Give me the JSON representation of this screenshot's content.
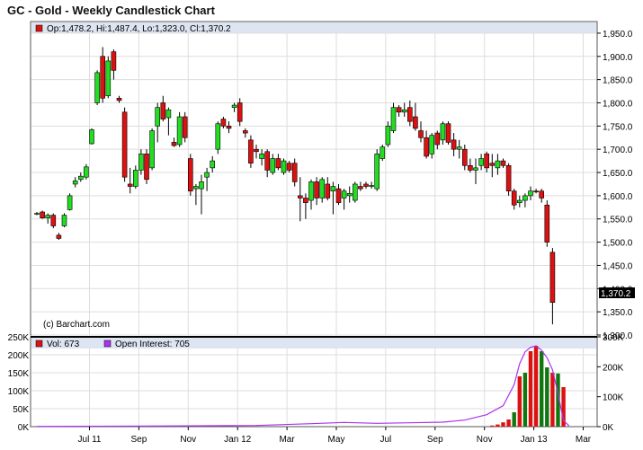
{
  "chart_title": "GC - Gold - Weekly Candlestick Chart",
  "price_panel": {
    "legend_text": "Op:1,478.2, Hi:1,487.4, Lo:1,323.0, Cl:1,370.2",
    "last_price_label": "1,370.2",
    "watermark": "(c) Barchart.com"
  },
  "volume_panel": {
    "legend_volume": "Vol: 673",
    "legend_oi": "Open Interest: 705"
  },
  "colors": {
    "up": "#22dd22",
    "down": "#dd1111",
    "oi_line": "#aa33ee",
    "header_band": "#dde4f2",
    "grid": "#dddddd"
  },
  "chart_data": [
    {
      "type": "candlestick",
      "title": "GC - Gold - Weekly Candlestick Chart",
      "ylim": [
        1300,
        1975
      ],
      "ytick_values": [
        1300,
        1350,
        1400,
        1450,
        1500,
        1550,
        1600,
        1650,
        1700,
        1750,
        1800,
        1850,
        1900,
        1950
      ],
      "ytick_labels": [
        "1,300.0",
        "1,350.0",
        "1,400.0",
        "1,450.0",
        "1,500.0",
        "1,550.0",
        "1,600.0",
        "1,650.0",
        "1,700.0",
        "1,750.0",
        "1,800.0",
        "1,850.0",
        "1,900.0",
        "1,950.0"
      ],
      "x_labels": [
        "Jul 11",
        "Sep",
        "Nov",
        "Jan 12",
        "Mar",
        "May",
        "Jul",
        "Sep",
        "Nov",
        "Jan 13",
        "Mar"
      ],
      "x_label_candle_index": [
        5,
        14,
        23,
        32,
        41,
        50,
        59,
        68,
        77,
        86,
        95
      ],
      "candles": [
        {
          "o": 1560,
          "h": 1565,
          "l": 1558,
          "c": 1562
        },
        {
          "o": 1565,
          "h": 1568,
          "l": 1550,
          "c": 1552
        },
        {
          "o": 1552,
          "h": 1562,
          "l": 1540,
          "c": 1558
        },
        {
          "o": 1558,
          "h": 1562,
          "l": 1530,
          "c": 1535
        },
        {
          "o": 1515,
          "h": 1520,
          "l": 1505,
          "c": 1508
        },
        {
          "o": 1535,
          "h": 1562,
          "l": 1532,
          "c": 1558
        },
        {
          "o": 1570,
          "h": 1605,
          "l": 1568,
          "c": 1600
        },
        {
          "o": 1625,
          "h": 1640,
          "l": 1618,
          "c": 1632
        },
        {
          "o": 1635,
          "h": 1650,
          "l": 1630,
          "c": 1642
        },
        {
          "o": 1640,
          "h": 1668,
          "l": 1635,
          "c": 1662
        },
        {
          "o": 1712,
          "h": 1745,
          "l": 1710,
          "c": 1742
        },
        {
          "o": 1800,
          "h": 1870,
          "l": 1795,
          "c": 1865
        },
        {
          "o": 1900,
          "h": 1920,
          "l": 1800,
          "c": 1810
        },
        {
          "o": 1815,
          "h": 1900,
          "l": 1810,
          "c": 1890
        },
        {
          "o": 1910,
          "h": 1915,
          "l": 1850,
          "c": 1870
        },
        {
          "o": 1810,
          "h": 1815,
          "l": 1800,
          "c": 1805
        },
        {
          "o": 1780,
          "h": 1790,
          "l": 1630,
          "c": 1640
        },
        {
          "o": 1625,
          "h": 1660,
          "l": 1605,
          "c": 1620
        },
        {
          "o": 1620,
          "h": 1665,
          "l": 1615,
          "c": 1655
        },
        {
          "o": 1655,
          "h": 1700,
          "l": 1645,
          "c": 1690
        },
        {
          "o": 1690,
          "h": 1700,
          "l": 1625,
          "c": 1635
        },
        {
          "o": 1660,
          "h": 1745,
          "l": 1655,
          "c": 1740
        },
        {
          "o": 1750,
          "h": 1800,
          "l": 1715,
          "c": 1790
        },
        {
          "o": 1800,
          "h": 1815,
          "l": 1760,
          "c": 1765
        },
        {
          "o": 1768,
          "h": 1790,
          "l": 1730,
          "c": 1785
        },
        {
          "o": 1715,
          "h": 1725,
          "l": 1705,
          "c": 1708
        },
        {
          "o": 1710,
          "h": 1780,
          "l": 1705,
          "c": 1770
        },
        {
          "o": 1770,
          "h": 1780,
          "l": 1715,
          "c": 1725
        },
        {
          "o": 1680,
          "h": 1690,
          "l": 1600,
          "c": 1610
        },
        {
          "o": 1615,
          "h": 1625,
          "l": 1580,
          "c": 1620
        },
        {
          "o": 1615,
          "h": 1645,
          "l": 1560,
          "c": 1630
        },
        {
          "o": 1640,
          "h": 1660,
          "l": 1610,
          "c": 1650
        },
        {
          "o": 1660,
          "h": 1685,
          "l": 1650,
          "c": 1675
        },
        {
          "o": 1700,
          "h": 1760,
          "l": 1690,
          "c": 1755
        },
        {
          "o": 1765,
          "h": 1770,
          "l": 1745,
          "c": 1750
        },
        {
          "o": 1750,
          "h": 1760,
          "l": 1735,
          "c": 1745
        },
        {
          "o": 1790,
          "h": 1800,
          "l": 1780,
          "c": 1795
        },
        {
          "o": 1800,
          "h": 1810,
          "l": 1750,
          "c": 1760
        },
        {
          "o": 1740,
          "h": 1745,
          "l": 1725,
          "c": 1735
        },
        {
          "o": 1720,
          "h": 1730,
          "l": 1660,
          "c": 1670
        },
        {
          "o": 1700,
          "h": 1710,
          "l": 1680,
          "c": 1695
        },
        {
          "o": 1680,
          "h": 1700,
          "l": 1665,
          "c": 1690
        },
        {
          "o": 1695,
          "h": 1700,
          "l": 1640,
          "c": 1655
        },
        {
          "o": 1650,
          "h": 1690,
          "l": 1645,
          "c": 1680
        },
        {
          "o": 1680,
          "h": 1690,
          "l": 1655,
          "c": 1660
        },
        {
          "o": 1650,
          "h": 1680,
          "l": 1645,
          "c": 1675
        },
        {
          "o": 1670,
          "h": 1675,
          "l": 1650,
          "c": 1655
        },
        {
          "o": 1670,
          "h": 1680,
          "l": 1620,
          "c": 1630
        },
        {
          "o": 1600,
          "h": 1640,
          "l": 1545,
          "c": 1595
        },
        {
          "o": 1595,
          "h": 1605,
          "l": 1550,
          "c": 1585
        },
        {
          "o": 1590,
          "h": 1635,
          "l": 1570,
          "c": 1630
        },
        {
          "o": 1630,
          "h": 1640,
          "l": 1580,
          "c": 1595
        },
        {
          "o": 1595,
          "h": 1640,
          "l": 1585,
          "c": 1635
        },
        {
          "o": 1625,
          "h": 1640,
          "l": 1590,
          "c": 1595
        },
        {
          "o": 1610,
          "h": 1630,
          "l": 1560,
          "c": 1620
        },
        {
          "o": 1615,
          "h": 1625,
          "l": 1580,
          "c": 1585
        },
        {
          "o": 1595,
          "h": 1615,
          "l": 1570,
          "c": 1610
        },
        {
          "o": 1600,
          "h": 1620,
          "l": 1585,
          "c": 1605
        },
        {
          "o": 1590,
          "h": 1630,
          "l": 1585,
          "c": 1625
        },
        {
          "o": 1620,
          "h": 1630,
          "l": 1610,
          "c": 1615
        },
        {
          "o": 1625,
          "h": 1630,
          "l": 1615,
          "c": 1620
        },
        {
          "o": 1620,
          "h": 1630,
          "l": 1615,
          "c": 1622
        },
        {
          "o": 1615,
          "h": 1700,
          "l": 1610,
          "c": 1690
        },
        {
          "o": 1680,
          "h": 1710,
          "l": 1675,
          "c": 1705
        },
        {
          "o": 1710,
          "h": 1760,
          "l": 1705,
          "c": 1750
        },
        {
          "o": 1740,
          "h": 1800,
          "l": 1735,
          "c": 1790
        },
        {
          "o": 1790,
          "h": 1795,
          "l": 1770,
          "c": 1780
        },
        {
          "o": 1780,
          "h": 1800,
          "l": 1770,
          "c": 1785
        },
        {
          "o": 1790,
          "h": 1805,
          "l": 1750,
          "c": 1760
        },
        {
          "o": 1770,
          "h": 1800,
          "l": 1740,
          "c": 1745
        },
        {
          "o": 1740,
          "h": 1760,
          "l": 1715,
          "c": 1725
        },
        {
          "o": 1725,
          "h": 1740,
          "l": 1680,
          "c": 1685
        },
        {
          "o": 1690,
          "h": 1735,
          "l": 1680,
          "c": 1730
        },
        {
          "o": 1735,
          "h": 1740,
          "l": 1700,
          "c": 1710
        },
        {
          "o": 1720,
          "h": 1760,
          "l": 1710,
          "c": 1755
        },
        {
          "o": 1755,
          "h": 1760,
          "l": 1710,
          "c": 1715
        },
        {
          "o": 1720,
          "h": 1735,
          "l": 1685,
          "c": 1700
        },
        {
          "o": 1700,
          "h": 1720,
          "l": 1680,
          "c": 1705
        },
        {
          "o": 1700,
          "h": 1710,
          "l": 1655,
          "c": 1665
        },
        {
          "o": 1665,
          "h": 1680,
          "l": 1650,
          "c": 1655
        },
        {
          "o": 1655,
          "h": 1680,
          "l": 1625,
          "c": 1660
        },
        {
          "o": 1665,
          "h": 1690,
          "l": 1655,
          "c": 1680
        },
        {
          "o": 1690,
          "h": 1695,
          "l": 1650,
          "c": 1660
        },
        {
          "o": 1670,
          "h": 1690,
          "l": 1640,
          "c": 1665
        },
        {
          "o": 1660,
          "h": 1690,
          "l": 1645,
          "c": 1675
        },
        {
          "o": 1675,
          "h": 1680,
          "l": 1660,
          "c": 1665
        },
        {
          "o": 1665,
          "h": 1670,
          "l": 1600,
          "c": 1610
        },
        {
          "o": 1610,
          "h": 1615,
          "l": 1570,
          "c": 1580
        },
        {
          "o": 1585,
          "h": 1600,
          "l": 1575,
          "c": 1590
        },
        {
          "o": 1590,
          "h": 1605,
          "l": 1575,
          "c": 1600
        },
        {
          "o": 1600,
          "h": 1620,
          "l": 1590,
          "c": 1610
        },
        {
          "o": 1610,
          "h": 1615,
          "l": 1605,
          "c": 1608
        },
        {
          "o": 1610,
          "h": 1615,
          "l": 1585,
          "c": 1595
        },
        {
          "o": 1580,
          "h": 1590,
          "l": 1490,
          "c": 1500
        },
        {
          "o": 1478.2,
          "h": 1487.4,
          "l": 1323.0,
          "c": 1370.2
        }
      ]
    },
    {
      "type": "bar",
      "title": "Volume and Open Interest",
      "ylim": [
        0,
        250000
      ],
      "left_tick_labels": [
        "0K",
        "50K",
        "100K",
        "150K",
        "200K",
        "250K"
      ],
      "left_tick_values": [
        0,
        50000,
        100000,
        150000,
        200000,
        250000
      ],
      "right_tick_labels": [
        "0K",
        "100K",
        "200K",
        "300K"
      ],
      "right_tick_values": [
        0,
        100000,
        200000,
        300000
      ],
      "volume": [
        {
          "i": 83,
          "v": 3000,
          "up": false
        },
        {
          "i": 84,
          "v": 6000,
          "up": false
        },
        {
          "i": 85,
          "v": 12000,
          "up": false
        },
        {
          "i": 86,
          "v": 20000,
          "up": false
        },
        {
          "i": 87,
          "v": 40000,
          "up": true
        },
        {
          "i": 88,
          "v": 140000,
          "up": false
        },
        {
          "i": 89,
          "v": 150000,
          "up": true
        },
        {
          "i": 90,
          "v": 210000,
          "up": false
        },
        {
          "i": 91,
          "v": 225000,
          "up": false
        },
        {
          "i": 92,
          "v": 210000,
          "up": true
        },
        {
          "i": 93,
          "v": 165000,
          "up": true
        },
        {
          "i": 94,
          "v": 150000,
          "up": false
        },
        {
          "i": 95,
          "v": 148000,
          "up": true
        },
        {
          "i": 96,
          "v": 110000,
          "up": false
        }
      ],
      "open_interest": [
        {
          "i": 0,
          "v": 1000
        },
        {
          "i": 20,
          "v": 2000
        },
        {
          "i": 40,
          "v": 4000
        },
        {
          "i": 50,
          "v": 10000
        },
        {
          "i": 56,
          "v": 14000
        },
        {
          "i": 62,
          "v": 11000
        },
        {
          "i": 68,
          "v": 13000
        },
        {
          "i": 74,
          "v": 15000
        },
        {
          "i": 78,
          "v": 22000
        },
        {
          "i": 82,
          "v": 40000
        },
        {
          "i": 85,
          "v": 70000
        },
        {
          "i": 87,
          "v": 140000
        },
        {
          "i": 88,
          "v": 210000
        },
        {
          "i": 89,
          "v": 250000
        },
        {
          "i": 90,
          "v": 265000
        },
        {
          "i": 91,
          "v": 270000
        },
        {
          "i": 92,
          "v": 255000
        },
        {
          "i": 93,
          "v": 230000
        },
        {
          "i": 94,
          "v": 190000
        },
        {
          "i": 95,
          "v": 110000
        },
        {
          "i": 96,
          "v": 20000
        },
        {
          "i": 97,
          "v": 3000
        }
      ]
    }
  ]
}
